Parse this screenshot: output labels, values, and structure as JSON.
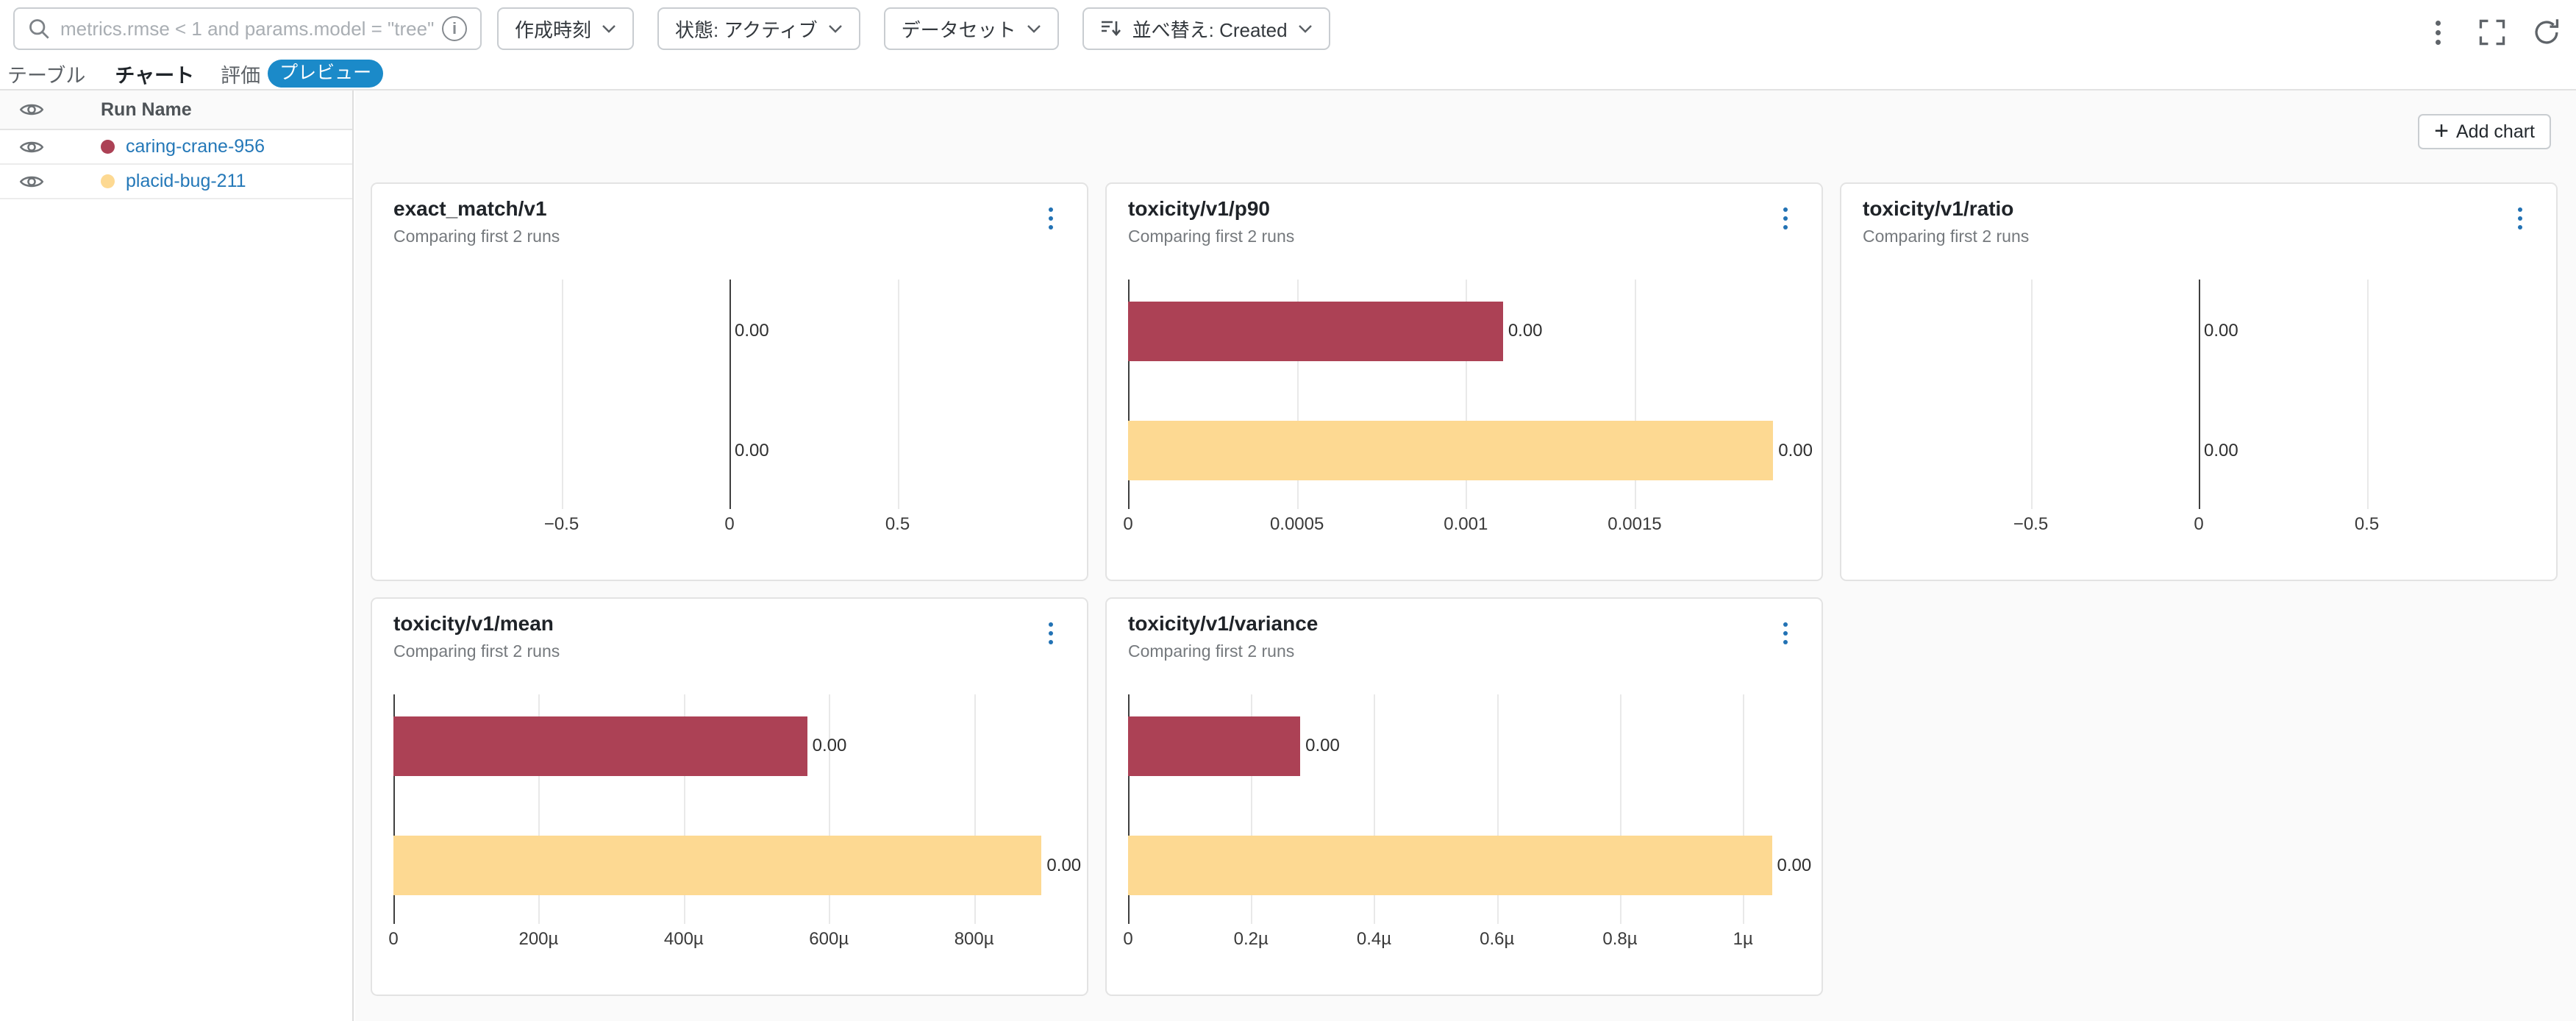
{
  "toolbar": {
    "search_placeholder": "metrics.rmse < 1 and params.model = \"tree\"",
    "filter_created": "作成時刻",
    "filter_state": "状態: アクティブ",
    "filter_dataset": "データセット",
    "sort_label": "並べ替え: Created"
  },
  "tabs": {
    "table": "テーブル",
    "chart": "チャート",
    "evaluate": "評価",
    "preview_badge": "プレビュー"
  },
  "run_list": {
    "header": "Run Name",
    "runs": [
      {
        "name": "caring-crane-956",
        "color": "#ac4155"
      },
      {
        "name": "placid-bug-211",
        "color": "#fdd992"
      }
    ]
  },
  "main": {
    "add_chart": "Add chart"
  },
  "theme": {
    "accent_blue": "#1b8ac9",
    "link_blue": "#2478b8",
    "bar_red": "#ac4155",
    "bar_yellow": "#fdd992"
  },
  "chart_data": [
    {
      "type": "bar",
      "orientation": "horizontal",
      "title": "exact_match/v1",
      "subtitle": "Comparing first 2 runs",
      "xlim": [
        -1,
        1
      ],
      "xticks": [
        {
          "v": -0.5,
          "label": "−0.5"
        },
        {
          "v": 0,
          "label": "0"
        },
        {
          "v": 0.5,
          "label": "0.5"
        }
      ],
      "series": [
        {
          "name": "caring-crane-956",
          "value": 0,
          "label": "0.00",
          "color": "#ac4155"
        },
        {
          "name": "placid-bug-211",
          "value": 0,
          "label": "0.00",
          "color": "#fdd992"
        }
      ]
    },
    {
      "type": "bar",
      "orientation": "horizontal",
      "title": "toxicity/v1/p90",
      "subtitle": "Comparing first 2 runs",
      "xlim": [
        0,
        0.00199
      ],
      "xticks": [
        {
          "v": 0,
          "label": "0"
        },
        {
          "v": 0.0005,
          "label": "0.0005"
        },
        {
          "v": 0.001,
          "label": "0.001"
        },
        {
          "v": 0.0015,
          "label": "0.0015"
        }
      ],
      "series": [
        {
          "name": "caring-crane-956",
          "value": 0.00111,
          "label": "0.00",
          "color": "#ac4155"
        },
        {
          "name": "placid-bug-211",
          "value": 0.00191,
          "label": "0.00",
          "color": "#fdd992"
        }
      ]
    },
    {
      "type": "bar",
      "orientation": "horizontal",
      "title": "toxicity/v1/ratio",
      "subtitle": "Comparing first 2 runs",
      "xlim": [
        -1,
        1
      ],
      "xticks": [
        {
          "v": -0.5,
          "label": "−0.5"
        },
        {
          "v": 0,
          "label": "0"
        },
        {
          "v": 0.5,
          "label": "0.5"
        }
      ],
      "series": [
        {
          "name": "caring-crane-956",
          "value": 0,
          "label": "0.00",
          "color": "#ac4155"
        },
        {
          "name": "placid-bug-211",
          "value": 0,
          "label": "0.00",
          "color": "#fdd992"
        }
      ]
    },
    {
      "type": "bar",
      "orientation": "horizontal",
      "title": "toxicity/v1/mean",
      "subtitle": "Comparing first 2 runs",
      "xlim": [
        0,
        0.000926
      ],
      "xticks": [
        {
          "v": 0,
          "label": "0"
        },
        {
          "v": 0.0002,
          "label": "200µ"
        },
        {
          "v": 0.0004,
          "label": "400µ"
        },
        {
          "v": 0.0006,
          "label": "600µ"
        },
        {
          "v": 0.0008,
          "label": "800µ"
        }
      ],
      "series": [
        {
          "name": "caring-crane-956",
          "value": 0.00057,
          "label": "0.00",
          "color": "#ac4155"
        },
        {
          "name": "placid-bug-211",
          "value": 0.000893,
          "label": "0.00",
          "color": "#fdd992"
        }
      ]
    },
    {
      "type": "bar",
      "orientation": "horizontal",
      "title": "toxicity/v1/variance",
      "subtitle": "Comparing first 2 runs",
      "xlim": [
        0,
        1.093e-06
      ],
      "xticks": [
        {
          "v": 0,
          "label": "0"
        },
        {
          "v": 2e-07,
          "label": "0.2µ"
        },
        {
          "v": 4e-07,
          "label": "0.4µ"
        },
        {
          "v": 6e-07,
          "label": "0.6µ"
        },
        {
          "v": 8e-07,
          "label": "0.8µ"
        },
        {
          "v": 1e-06,
          "label": "1µ"
        }
      ],
      "series": [
        {
          "name": "caring-crane-956",
          "value": 2.8e-07,
          "label": "0.00",
          "color": "#ac4155"
        },
        {
          "name": "placid-bug-211",
          "value": 1.047e-06,
          "label": "0.00",
          "color": "#fdd992"
        }
      ]
    }
  ]
}
